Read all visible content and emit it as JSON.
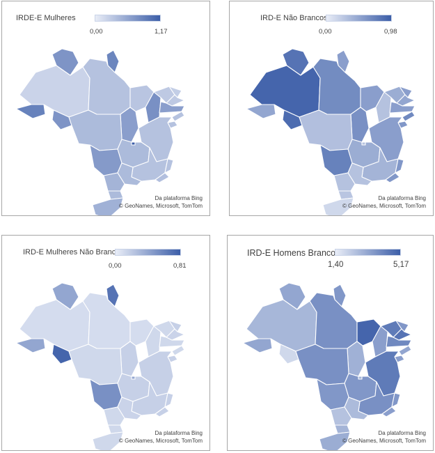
{
  "panels": [
    {
      "title": "IRDE-E Mulheres",
      "scale_min": "0,00",
      "scale_max": "1,17",
      "credit_line1": "Da plataforma Bing",
      "credit_line2": "© GeoNames, Microsoft, TomTom",
      "low_color": "#e9edf7",
      "high_color": "#3c5ea8",
      "state_levels": {
        "ac": 0.75,
        "am": 0.18,
        "rr": 0.62,
        "ap": 0.72,
        "pa": 0.3,
        "ma": 0.28,
        "to": 0.55,
        "ro": 0.62,
        "mt": 0.35,
        "ms": 0.58,
        "go": 0.35,
        "df": 1.0,
        "mg": 0.3,
        "sp": 0.35,
        "pr": 0.4,
        "sc": 0.35,
        "rs": 0.42,
        "rj": 0.32,
        "es": 0.3,
        "ba": 0.3,
        "pi": 0.65,
        "ce": 0.25,
        "rn": 0.22,
        "pb": 0.25,
        "pe": 0.55,
        "al": 0.3,
        "se": 0.3
      }
    },
    {
      "title": "IRD-E Não Brancos",
      "scale_min": "0,00",
      "scale_max": "0,98",
      "credit_line1": "Da plataforma Bing",
      "credit_line2": "© GeoNames, Microsoft, TomTom",
      "low_color": "#e9edf7",
      "high_color": "#3c5ea8",
      "state_levels": {
        "ac": 0.5,
        "am": 0.95,
        "rr": 0.85,
        "ap": 0.55,
        "pa": 0.68,
        "ma": 0.55,
        "to": 0.65,
        "ro": 0.9,
        "mt": 0.32,
        "ms": 0.75,
        "go": 0.45,
        "df": 0.3,
        "mg": 0.4,
        "sp": 0.3,
        "pr": 0.3,
        "sc": 0.28,
        "rs": 0.15,
        "rj": 0.6,
        "es": 0.6,
        "ba": 0.55,
        "pi": 0.3,
        "ce": 0.45,
        "rn": 0.55,
        "pb": 0.5,
        "pe": 0.55,
        "al": 0.7,
        "se": 0.6
      }
    },
    {
      "title": "IRD-E Mulheres Não Brancas",
      "scale_min": "0,00",
      "scale_max": "0,81",
      "credit_line1": "Da plataforma Bing",
      "credit_line2": "© GeoNames, Microsoft, TomTom",
      "low_color": "#e9edf7",
      "high_color": "#3c5ea8",
      "state_levels": {
        "ac": 0.5,
        "am": 0.12,
        "rr": 0.5,
        "ap": 0.85,
        "pa": 0.12,
        "ma": 0.12,
        "to": 0.2,
        "ro": 0.95,
        "mt": 0.15,
        "ms": 0.65,
        "go": 0.2,
        "df": 0.5,
        "mg": 0.2,
        "sp": 0.18,
        "pr": 0.15,
        "sc": 0.15,
        "rs": 0.15,
        "rj": 0.2,
        "es": 0.2,
        "ba": 0.2,
        "pi": 0.15,
        "ce": 0.15,
        "rn": 0.2,
        "pb": 0.18,
        "pe": 0.15,
        "al": 0.15,
        "se": 0.2
      }
    },
    {
      "title": "IRD-E Homens Brancos",
      "scale_min": "1,40",
      "scale_max": "5,17",
      "credit_line1": "Da plataforma Bing",
      "credit_line2": "© GeoNames, Microsoft, TomTom",
      "low_color": "#e9edf7",
      "high_color": "#3c5ea8",
      "state_levels": {
        "ac": 0.5,
        "am": 0.38,
        "rr": 0.5,
        "ap": 0.6,
        "pa": 0.65,
        "ma": 0.95,
        "to": 0.42,
        "ro": 0.15,
        "mt": 0.65,
        "ms": 0.6,
        "go": 0.6,
        "df": 0.4,
        "mg": 0.65,
        "sp": 0.35,
        "pr": 0.3,
        "sc": 0.4,
        "rs": 0.45,
        "rj": 0.55,
        "es": 0.6,
        "ba": 0.8,
        "pi": 0.55,
        "ce": 0.8,
        "rn": 0.6,
        "pb": 0.85,
        "pe": 0.7,
        "al": 0.5,
        "se": 0.55
      }
    }
  ]
}
